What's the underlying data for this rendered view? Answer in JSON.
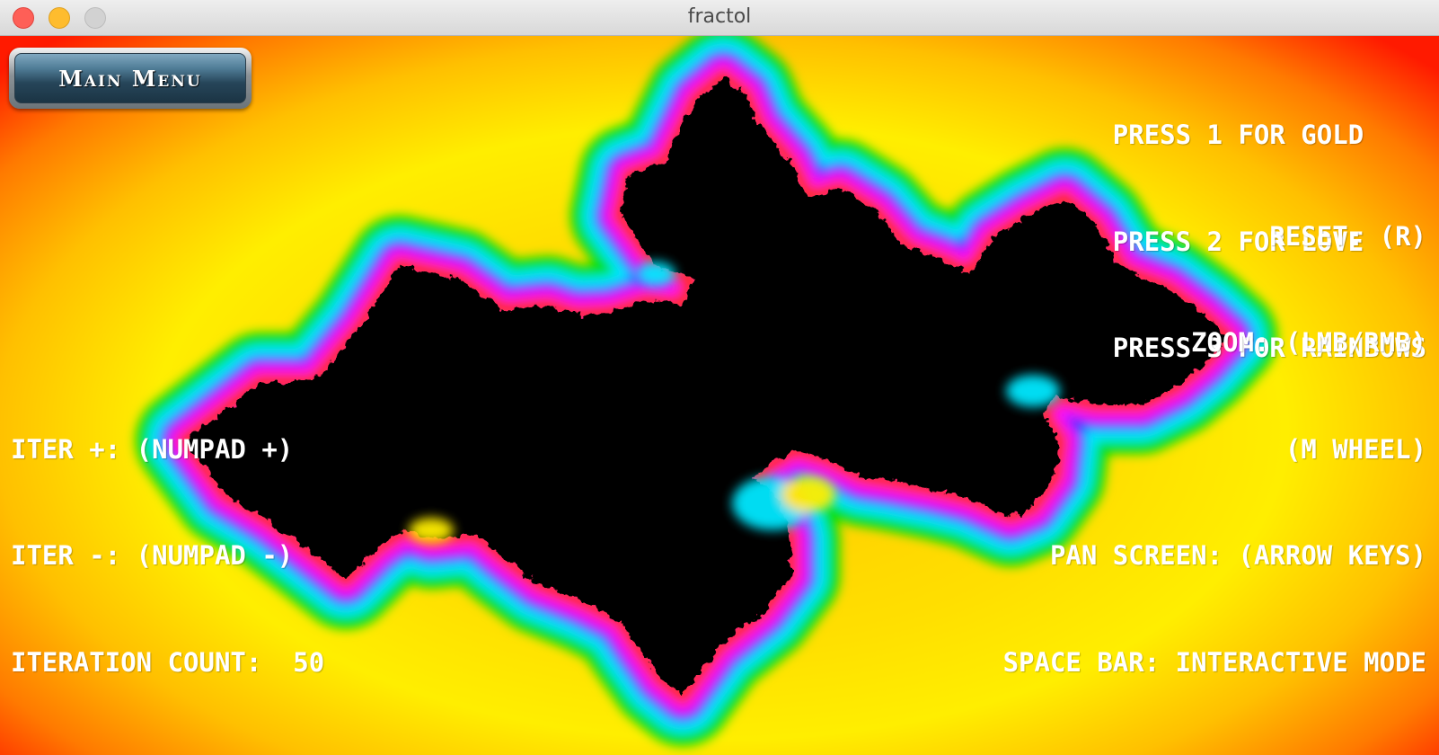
{
  "window": {
    "title": "fractol"
  },
  "menu_button": {
    "label": "Main Menu"
  },
  "palette_hints": [
    "PRESS 1 FOR GOLD",
    "PRESS 2 FOR LOVE",
    "PRESS 3 FOR RAINBOWS"
  ],
  "controls": [
    "RESET: (R)",
    "ZOOM: (LMB/RMB)",
    "(M WHEEL)",
    "PAN SCREEN: (ARROW KEYS)",
    "SPACE BAR: INTERACTIVE MODE"
  ],
  "iteration": {
    "increase_hint": "ITER +: (NUMPAD +)",
    "decrease_hint": "ITER -: (NUMPAD -)",
    "count_label": "ITERATION COUNT:",
    "count_value": "50"
  },
  "colors": {
    "background_outer": "#ff1a00",
    "background_mid": "#ffee00",
    "fractal_interior": "#000000",
    "overlay_text": "#ffffff",
    "button_face": "#2f5870"
  },
  "fractal": {
    "type": "julia set",
    "color_scheme": "rainbows"
  }
}
